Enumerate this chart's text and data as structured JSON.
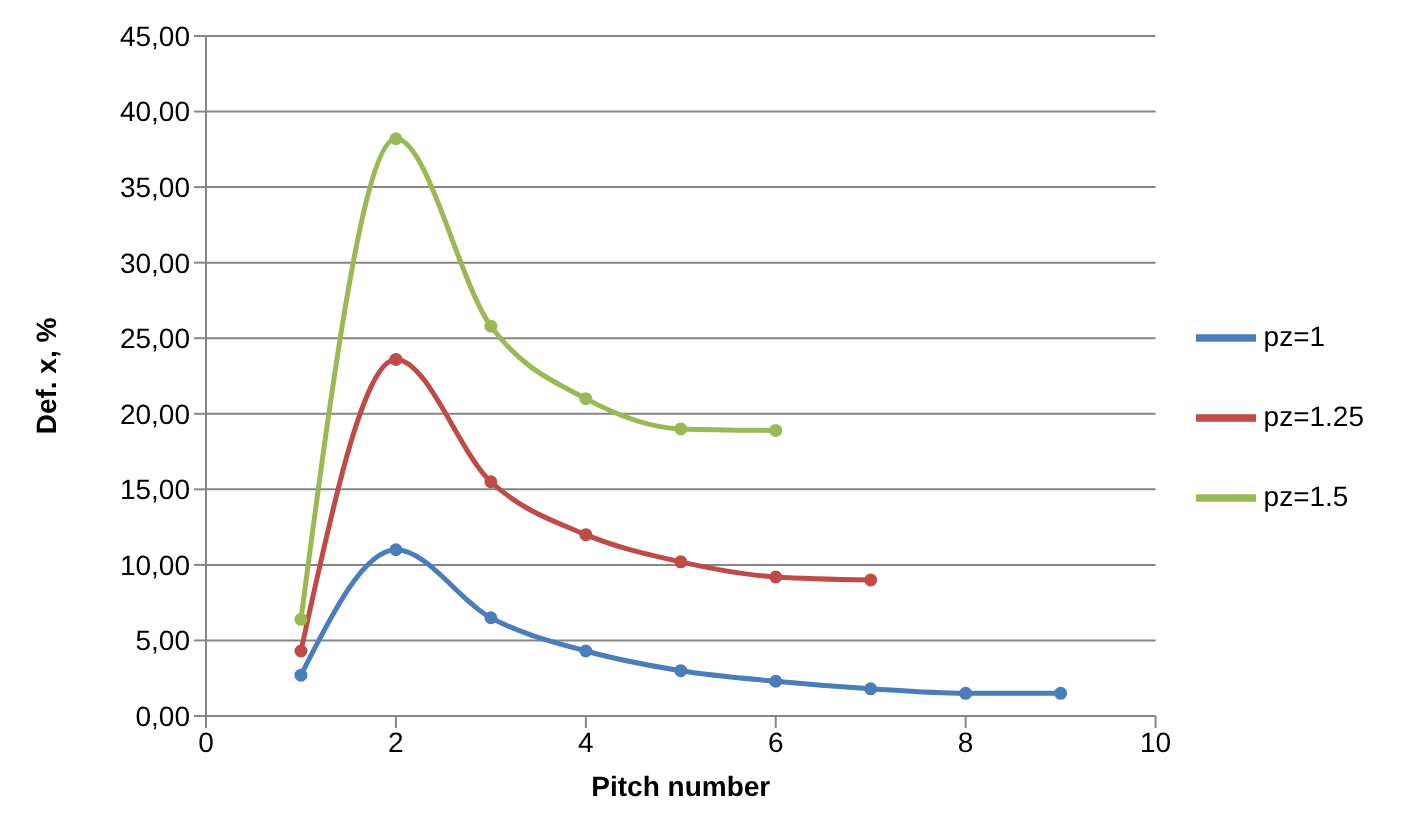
{
  "chart_data": {
    "type": "line",
    "xlabel": "Pitch number",
    "ylabel": "Def. x, %",
    "x": [
      1,
      2,
      3,
      4,
      5,
      6,
      7,
      8,
      9
    ],
    "series": [
      {
        "name": "pz=1",
        "color": "#4a7ebb",
        "values": [
          2.7,
          11.0,
          6.5,
          4.3,
          3.0,
          2.3,
          1.8,
          1.5,
          1.5
        ]
      },
      {
        "name": "pz=1.25",
        "color": "#be4b48",
        "values": [
          4.3,
          23.6,
          15.5,
          12.0,
          10.2,
          9.2,
          9.0,
          null,
          null
        ]
      },
      {
        "name": "pz=1.5",
        "color": "#98b954",
        "values": [
          6.4,
          38.2,
          25.8,
          21.0,
          19.0,
          18.9,
          null,
          null,
          null
        ]
      }
    ],
    "xlim": [
      0,
      10
    ],
    "xticks": [
      0,
      2,
      4,
      6,
      8,
      10
    ],
    "ylim": [
      0,
      45
    ],
    "yticks": [
      {
        "value": 0,
        "label": "0,00"
      },
      {
        "value": 5,
        "label": "5,00"
      },
      {
        "value": 10,
        "label": "10,00"
      },
      {
        "value": 15,
        "label": "15,00"
      },
      {
        "value": 20,
        "label": "20,00"
      },
      {
        "value": 25,
        "label": "25,00"
      },
      {
        "value": 30,
        "label": "30,00"
      },
      {
        "value": 35,
        "label": "35,00"
      },
      {
        "value": 40,
        "label": "40,00"
      },
      {
        "value": 45,
        "label": "45,00"
      }
    ],
    "grid": "y",
    "legend": "right",
    "marker": "circle",
    "line_style": "solid"
  }
}
